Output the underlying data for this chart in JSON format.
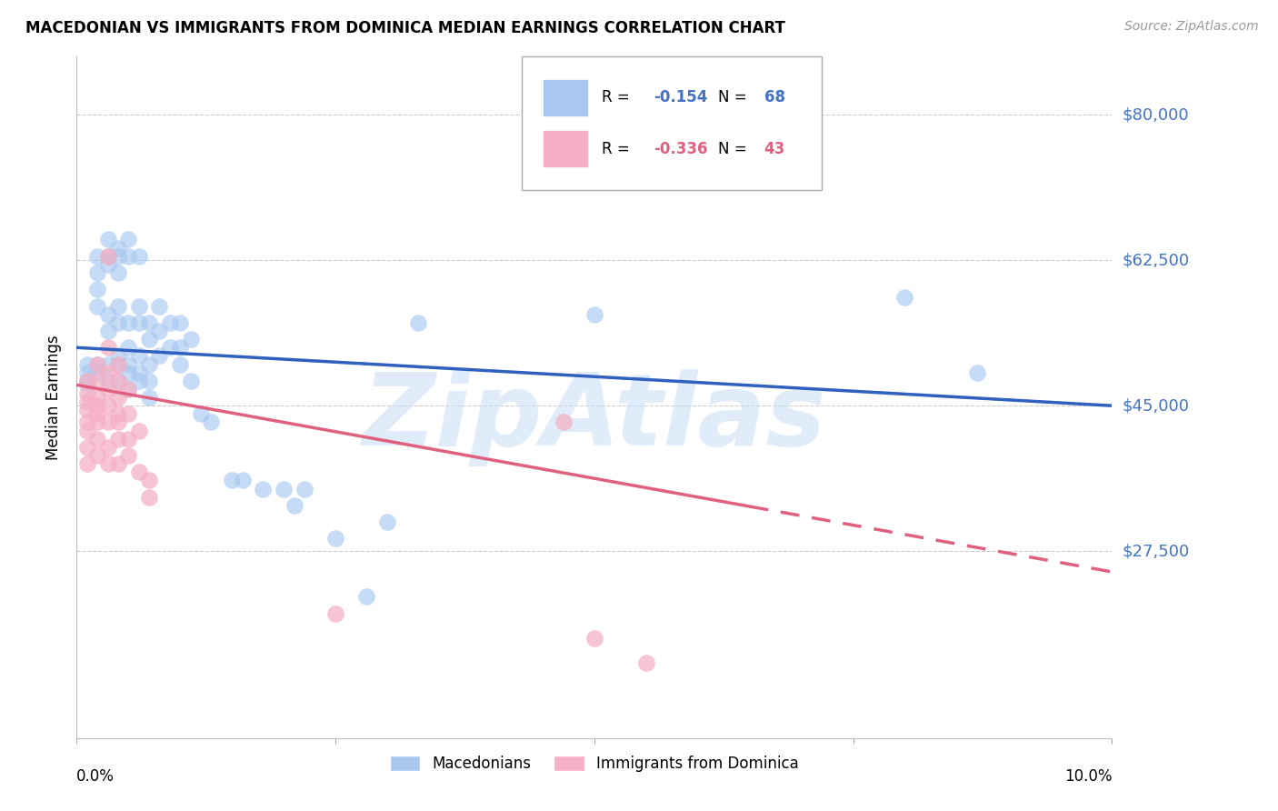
{
  "title": "MACEDONIAN VS IMMIGRANTS FROM DOMINICA MEDIAN EARNINGS CORRELATION CHART",
  "source": "Source: ZipAtlas.com",
  "ylabel": "Median Earnings",
  "y_ticks": [
    27500,
    45000,
    62500,
    80000
  ],
  "y_tick_labels": [
    "$27,500",
    "$45,000",
    "$62,500",
    "$80,000"
  ],
  "xlim": [
    0.0,
    0.1
  ],
  "ylim": [
    5000,
    87000
  ],
  "legend_blue_r": "-0.154",
  "legend_blue_n": "68",
  "legend_pink_r": "-0.336",
  "legend_pink_n": "43",
  "legend_label_blue": "Macedonians",
  "legend_label_pink": "Immigrants from Dominica",
  "watermark": "ZipAtlas",
  "blue_color": "#a8c8f0",
  "pink_color": "#f5b0c5",
  "blue_line_color": "#3060c0",
  "pink_line_color": "#e06080",
  "blue_scatter": [
    [
      0.001,
      50000
    ],
    [
      0.001,
      49000
    ],
    [
      0.001,
      48000
    ],
    [
      0.001,
      47500
    ],
    [
      0.002,
      63000
    ],
    [
      0.002,
      61000
    ],
    [
      0.002,
      59000
    ],
    [
      0.002,
      57000
    ],
    [
      0.002,
      50000
    ],
    [
      0.002,
      49000
    ],
    [
      0.003,
      65000
    ],
    [
      0.003,
      63000
    ],
    [
      0.003,
      62000
    ],
    [
      0.003,
      56000
    ],
    [
      0.003,
      54000
    ],
    [
      0.003,
      50000
    ],
    [
      0.003,
      48000
    ],
    [
      0.004,
      64000
    ],
    [
      0.004,
      63000
    ],
    [
      0.004,
      61000
    ],
    [
      0.004,
      57000
    ],
    [
      0.004,
      55000
    ],
    [
      0.004,
      51000
    ],
    [
      0.004,
      50000
    ],
    [
      0.004,
      48000
    ],
    [
      0.005,
      65000
    ],
    [
      0.005,
      63000
    ],
    [
      0.005,
      55000
    ],
    [
      0.005,
      52000
    ],
    [
      0.005,
      50000
    ],
    [
      0.005,
      49000
    ],
    [
      0.005,
      47000
    ],
    [
      0.006,
      63000
    ],
    [
      0.006,
      57000
    ],
    [
      0.006,
      55000
    ],
    [
      0.006,
      51000
    ],
    [
      0.006,
      49000
    ],
    [
      0.006,
      48000
    ],
    [
      0.007,
      55000
    ],
    [
      0.007,
      53000
    ],
    [
      0.007,
      50000
    ],
    [
      0.007,
      48000
    ],
    [
      0.007,
      46000
    ],
    [
      0.008,
      57000
    ],
    [
      0.008,
      54000
    ],
    [
      0.008,
      51000
    ],
    [
      0.009,
      55000
    ],
    [
      0.009,
      52000
    ],
    [
      0.01,
      55000
    ],
    [
      0.01,
      52000
    ],
    [
      0.01,
      50000
    ],
    [
      0.011,
      53000
    ],
    [
      0.011,
      48000
    ],
    [
      0.012,
      44000
    ],
    [
      0.013,
      43000
    ],
    [
      0.015,
      36000
    ],
    [
      0.016,
      36000
    ],
    [
      0.018,
      35000
    ],
    [
      0.02,
      35000
    ],
    [
      0.021,
      33000
    ],
    [
      0.022,
      35000
    ],
    [
      0.025,
      29000
    ],
    [
      0.028,
      22000
    ],
    [
      0.03,
      31000
    ],
    [
      0.033,
      55000
    ],
    [
      0.05,
      56000
    ],
    [
      0.08,
      58000
    ],
    [
      0.087,
      49000
    ]
  ],
  "pink_scatter": [
    [
      0.001,
      48000
    ],
    [
      0.001,
      46500
    ],
    [
      0.001,
      45500
    ],
    [
      0.001,
      44500
    ],
    [
      0.001,
      43000
    ],
    [
      0.001,
      42000
    ],
    [
      0.001,
      40000
    ],
    [
      0.001,
      38000
    ],
    [
      0.002,
      50000
    ],
    [
      0.002,
      48000
    ],
    [
      0.002,
      46000
    ],
    [
      0.002,
      45000
    ],
    [
      0.002,
      44000
    ],
    [
      0.002,
      43000
    ],
    [
      0.002,
      41000
    ],
    [
      0.002,
      39000
    ],
    [
      0.003,
      63000
    ],
    [
      0.003,
      52000
    ],
    [
      0.003,
      49000
    ],
    [
      0.003,
      47000
    ],
    [
      0.003,
      45000
    ],
    [
      0.003,
      43000
    ],
    [
      0.003,
      40000
    ],
    [
      0.003,
      38000
    ],
    [
      0.004,
      50000
    ],
    [
      0.004,
      48000
    ],
    [
      0.004,
      46000
    ],
    [
      0.004,
      44000
    ],
    [
      0.004,
      43000
    ],
    [
      0.004,
      41000
    ],
    [
      0.004,
      38000
    ],
    [
      0.005,
      47000
    ],
    [
      0.005,
      44000
    ],
    [
      0.005,
      41000
    ],
    [
      0.005,
      39000
    ],
    [
      0.006,
      42000
    ],
    [
      0.006,
      37000
    ],
    [
      0.007,
      36000
    ],
    [
      0.007,
      34000
    ],
    [
      0.025,
      20000
    ],
    [
      0.047,
      43000
    ],
    [
      0.05,
      17000
    ],
    [
      0.055,
      14000
    ]
  ],
  "blue_trend_x": [
    0.0,
    0.1
  ],
  "blue_trend_y": [
    52000,
    45000
  ],
  "pink_trend_x": [
    0.0,
    0.1
  ],
  "pink_trend_y": [
    47500,
    25000
  ],
  "pink_trend_solid_end": 0.065
}
